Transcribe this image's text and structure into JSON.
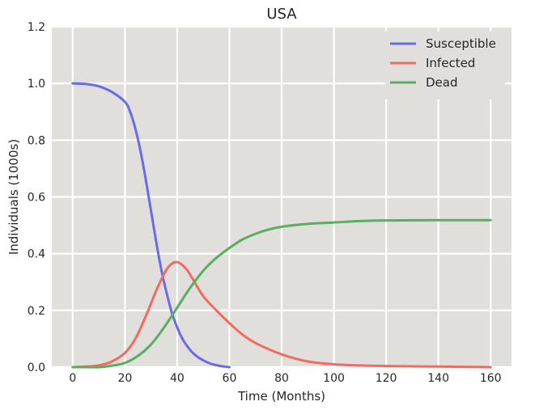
{
  "chart_data": {
    "type": "line",
    "title": "USA",
    "xlabel": "Time (Months)",
    "ylabel": "Individuals (1000s)",
    "xlim": [
      -8,
      168
    ],
    "ylim": [
      0,
      1.2
    ],
    "xticks": [
      0,
      20,
      40,
      60,
      80,
      100,
      120,
      140,
      160
    ],
    "yticks": [
      0.0,
      0.2,
      0.4,
      0.6,
      0.8,
      1.0,
      1.2
    ],
    "xtick_labels": [
      "0",
      "20",
      "40",
      "60",
      "80",
      "100",
      "120",
      "140",
      "160"
    ],
    "ytick_labels": [
      "0.0",
      "0.2",
      "0.4",
      "0.6",
      "0.8",
      "1.0",
      "1.2"
    ],
    "grid": true,
    "background": "#e0dfdb",
    "legend_position": "top-right",
    "series": [
      {
        "name": "Susceptible",
        "color": "#6b6be8",
        "x": [
          0,
          5,
          10,
          15,
          20,
          22,
          24,
          26,
          28,
          30,
          32,
          34,
          36,
          38,
          40,
          42,
          44,
          46,
          48,
          50,
          52,
          54,
          56,
          58,
          60
        ],
        "y": [
          1.0,
          0.998,
          0.99,
          0.97,
          0.935,
          0.9,
          0.84,
          0.76,
          0.66,
          0.55,
          0.44,
          0.34,
          0.26,
          0.19,
          0.14,
          0.1,
          0.072,
          0.05,
          0.035,
          0.024,
          0.015,
          0.009,
          0.005,
          0.002,
          0.0
        ]
      },
      {
        "name": "Infected",
        "color": "#f26a63",
        "x": [
          0,
          5,
          10,
          15,
          20,
          24,
          28,
          32,
          34,
          36,
          38,
          40,
          42,
          44,
          46,
          50,
          55,
          60,
          65,
          70,
          80,
          90,
          100,
          110,
          120,
          140,
          160
        ],
        "y": [
          0.0,
          0.002,
          0.006,
          0.02,
          0.05,
          0.1,
          0.18,
          0.27,
          0.31,
          0.345,
          0.365,
          0.37,
          0.36,
          0.34,
          0.31,
          0.25,
          0.2,
          0.155,
          0.115,
          0.085,
          0.045,
          0.02,
          0.01,
          0.006,
          0.004,
          0.002,
          0.0
        ]
      },
      {
        "name": "Dead",
        "color": "#5aae61",
        "x": [
          0,
          5,
          10,
          15,
          20,
          25,
          30,
          35,
          40,
          45,
          50,
          55,
          60,
          65,
          70,
          75,
          80,
          90,
          100,
          110,
          120,
          140,
          160
        ],
        "y": [
          0.0,
          0.0,
          0.0,
          0.005,
          0.015,
          0.04,
          0.08,
          0.14,
          0.21,
          0.28,
          0.34,
          0.385,
          0.42,
          0.45,
          0.47,
          0.485,
          0.495,
          0.505,
          0.51,
          0.515,
          0.517,
          0.518,
          0.518
        ]
      }
    ]
  }
}
